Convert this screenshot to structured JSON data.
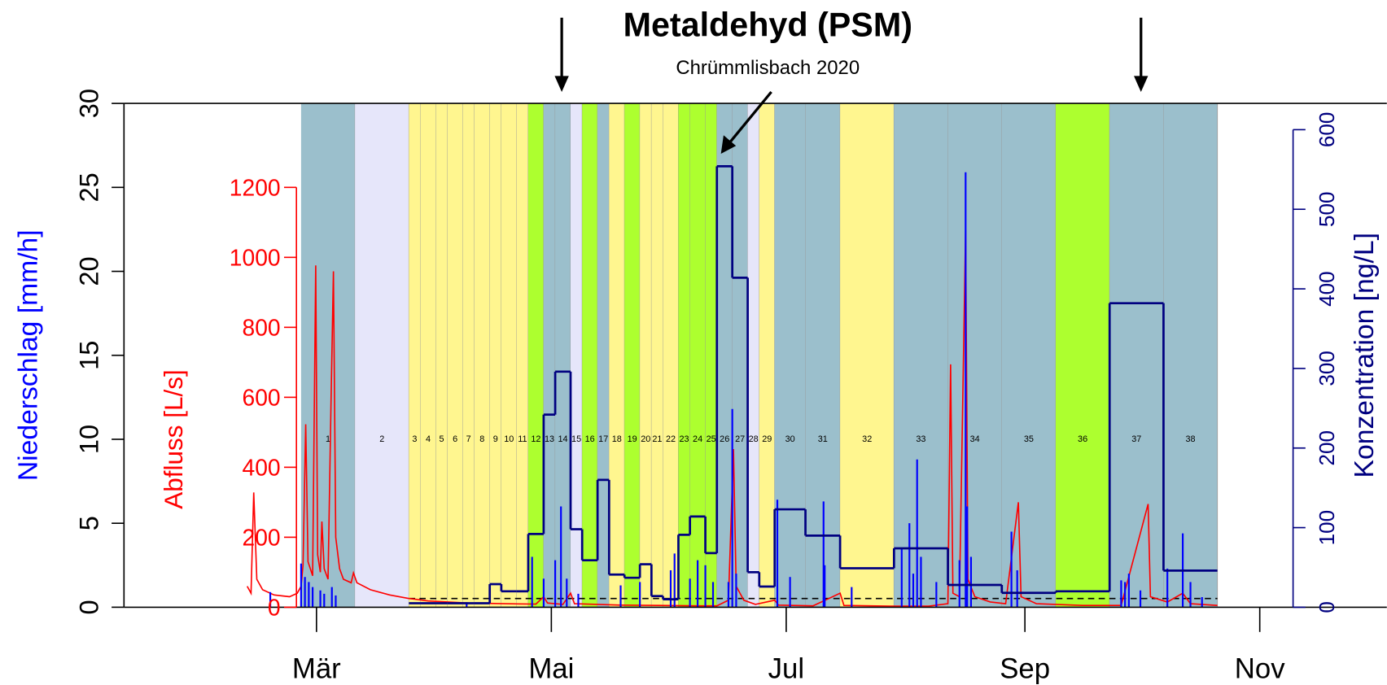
{
  "chart_data": {
    "type": "line",
    "title": "Metaldehyd (PSM)",
    "subtitle": "Chrümmlisbach 2020",
    "xlim": [
      11,
      339
    ],
    "xticks": [
      {
        "value": 61,
        "label": "Mär"
      },
      {
        "value": 122,
        "label": "Mai"
      },
      {
        "value": 183,
        "label": "Jul"
      },
      {
        "value": 245,
        "label": "Sep"
      },
      {
        "value": 306,
        "label": "Nov"
      }
    ],
    "ylabel": "Niederschlag [mm/h]",
    "ylim": [
      0,
      30
    ],
    "yticks": [
      0,
      5,
      10,
      15,
      20,
      25,
      30
    ],
    "ycolor": "#0000ff",
    "y2label": "Abfluss [L/s]",
    "y2lim": [
      0,
      1440
    ],
    "y2ticks": [
      0,
      200,
      400,
      600,
      800,
      1000,
      1200
    ],
    "y2color": "#ff0000",
    "y3label": "Konzentration [ng/L]",
    "y3lim": [
      0,
      633
    ],
    "y3ticks": [
      0,
      100,
      200,
      300,
      400,
      500,
      600
    ],
    "y3color": "#000080",
    "periods": {
      "labels": [
        "1",
        "2",
        "3",
        "4",
        "5",
        "6",
        "7",
        "8",
        "9",
        "10",
        "11",
        "12",
        "13",
        "14",
        "15",
        "16",
        "17",
        "18",
        "19",
        "20",
        "21",
        "22",
        "23",
        "24",
        "25",
        "26",
        "27",
        "28",
        "29",
        "30",
        "31",
        "32",
        "33",
        "34",
        "35",
        "36",
        "37",
        "38"
      ],
      "edges": [
        57,
        71,
        85,
        88,
        92,
        95,
        99,
        102,
        106,
        109,
        113,
        116,
        120,
        123,
        127,
        130,
        134,
        137,
        141,
        145,
        148,
        151,
        155,
        158,
        162,
        165,
        169,
        173,
        176,
        180,
        188,
        197,
        211,
        225,
        239,
        253,
        267,
        281,
        295
      ],
      "colors": [
        "#9bbfcc",
        "#e6e6fa",
        "#fff68f",
        "#fff68f",
        "#fff68f",
        "#fff68f",
        "#fff68f",
        "#fff68f",
        "#fff68f",
        "#fff68f",
        "#fff68f",
        "#adff2f",
        "#9bbfcc",
        "#9bbfcc",
        "#e6e6fa",
        "#adff2f",
        "#9bbfcc",
        "#fff68f",
        "#adff2f",
        "#fff68f",
        "#fff68f",
        "#fff68f",
        "#adff2f",
        "#adff2f",
        "#adff2f",
        "#9bbfcc",
        "#9bbfcc",
        "#e6e6fa",
        "#fff68f",
        "#9bbfcc",
        "#9bbfcc",
        "#fff68f",
        "#9bbfcc",
        "#9bbfcc",
        "#9bbfcc",
        "#adff2f",
        "#9bbfcc",
        "#9bbfcc"
      ]
    },
    "concentration": {
      "axis": "y3",
      "color": "#000080",
      "values": [
        null,
        null,
        5,
        5,
        5,
        5,
        5,
        5,
        29,
        20,
        20,
        92,
        242,
        296,
        98,
        59,
        160,
        41,
        37,
        54,
        14,
        10,
        91,
        114,
        68,
        554,
        414,
        44,
        26,
        123,
        90,
        49,
        74,
        28,
        18,
        20,
        382,
        46
      ]
    },
    "reference_line": {
      "axis": "y3",
      "value": 11
    },
    "rain": {
      "color": "#0000ff",
      "x": [
        49,
        57,
        58,
        59,
        60,
        62,
        63,
        65,
        66,
        100,
        117,
        120,
        123,
        124.5,
        126,
        129,
        140,
        145,
        153,
        154,
        158,
        160,
        162,
        164,
        168,
        169,
        170,
        180.7,
        184,
        192.7,
        193,
        200,
        213,
        215,
        216,
        217,
        218,
        222,
        228,
        229.6,
        230,
        231,
        241.5,
        243,
        270,
        271,
        272,
        275,
        282,
        286,
        288,
        291
      ],
      "values": [
        0.9,
        2.6,
        1.8,
        1.5,
        1.2,
        1,
        0.8,
        1.2,
        0.7,
        0.3,
        3,
        1.7,
        2.8,
        6,
        1.7,
        0.8,
        1.3,
        1.5,
        2.2,
        3.2,
        1.7,
        2.8,
        2.5,
        1.5,
        1.5,
        11.8,
        2,
        6.4,
        1.8,
        6.3,
        2.5,
        1.2,
        3.5,
        5,
        2,
        8.8,
        3,
        1.5,
        2.8,
        25.9,
        6,
        3,
        4.5,
        2.2,
        1.6,
        1.5,
        2,
        1,
        2.3,
        4.4,
        1.5,
        0.6
      ]
    },
    "discharge": {
      "axis": "y2",
      "color": "#ff0000",
      "x": [
        43,
        44,
        44.7,
        45.5,
        47,
        50,
        54,
        56,
        57,
        57.5,
        58.2,
        58.8,
        60,
        60.8,
        61.3,
        62,
        62.4,
        63,
        64,
        64.8,
        65.4,
        66,
        67,
        68,
        70,
        70.6,
        71.5,
        75,
        80,
        85,
        90,
        100,
        110,
        118,
        120,
        121,
        125,
        127,
        128,
        140,
        150,
        160,
        165,
        168,
        169.3,
        170,
        172,
        175,
        180,
        181,
        190,
        197,
        198,
        210,
        220,
        225,
        225.7,
        226.3,
        228,
        229.6,
        230.2,
        232,
        236,
        240,
        243.3,
        244,
        248,
        260,
        270,
        277,
        277.6,
        282,
        286,
        288,
        295
      ],
      "values": [
        60,
        40,
        328,
        80,
        50,
        35,
        30,
        40,
        60,
        120,
        523,
        130,
        90,
        977,
        150,
        100,
        245,
        110,
        80,
        603,
        960,
        200,
        110,
        80,
        70,
        98,
        70,
        50,
        35,
        25,
        18,
        12,
        10,
        9,
        30,
        12,
        8,
        40,
        10,
        6,
        5,
        4,
        4,
        20,
        452,
        60,
        20,
        8,
        20,
        6,
        4,
        40,
        5,
        3,
        3,
        10,
        694,
        40,
        30,
        1078,
        80,
        30,
        15,
        10,
        300,
        30,
        10,
        5,
        5,
        295,
        30,
        15,
        40,
        10,
        5
      ]
    }
  }
}
